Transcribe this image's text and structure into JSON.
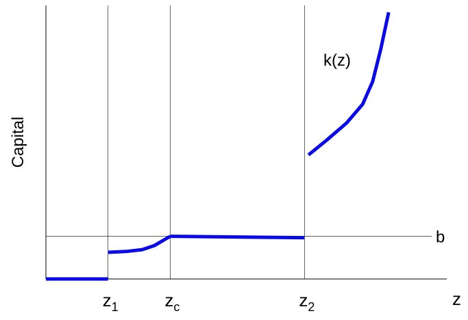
{
  "chart_data": {
    "type": "line",
    "title": "",
    "xlabel": "z",
    "ylabel": "Capital",
    "xlim": [
      0,
      1
    ],
    "ylim": [
      0,
      1
    ],
    "grid": false,
    "vlines": [
      {
        "base": "z",
        "sub": "1",
        "x": 0.155
      },
      {
        "base": "z",
        "sub": "c",
        "x": 0.31
      },
      {
        "base": "z",
        "sub": "2",
        "x": 0.645
      }
    ],
    "hline": {
      "label": "b",
      "y": 0.16
    },
    "series": [
      {
        "name": "k(z)",
        "segments": [
          [
            [
              0.0,
              0.0
            ],
            [
              0.155,
              0.0
            ]
          ],
          [
            [
              0.155,
              0.1
            ],
            [
              0.2,
              0.103
            ],
            [
              0.24,
              0.11
            ],
            [
              0.27,
              0.125
            ],
            [
              0.31,
              0.16
            ]
          ],
          [
            [
              0.31,
              0.16
            ],
            [
              0.645,
              0.155
            ]
          ],
          [
            [
              0.655,
              0.465
            ],
            [
              0.7,
              0.52
            ],
            [
              0.75,
              0.585
            ],
            [
              0.79,
              0.655
            ],
            [
              0.815,
              0.74
            ],
            [
              0.835,
              0.86
            ],
            [
              0.855,
              1.0
            ]
          ]
        ]
      }
    ],
    "series_color": "#0a0ae6"
  }
}
